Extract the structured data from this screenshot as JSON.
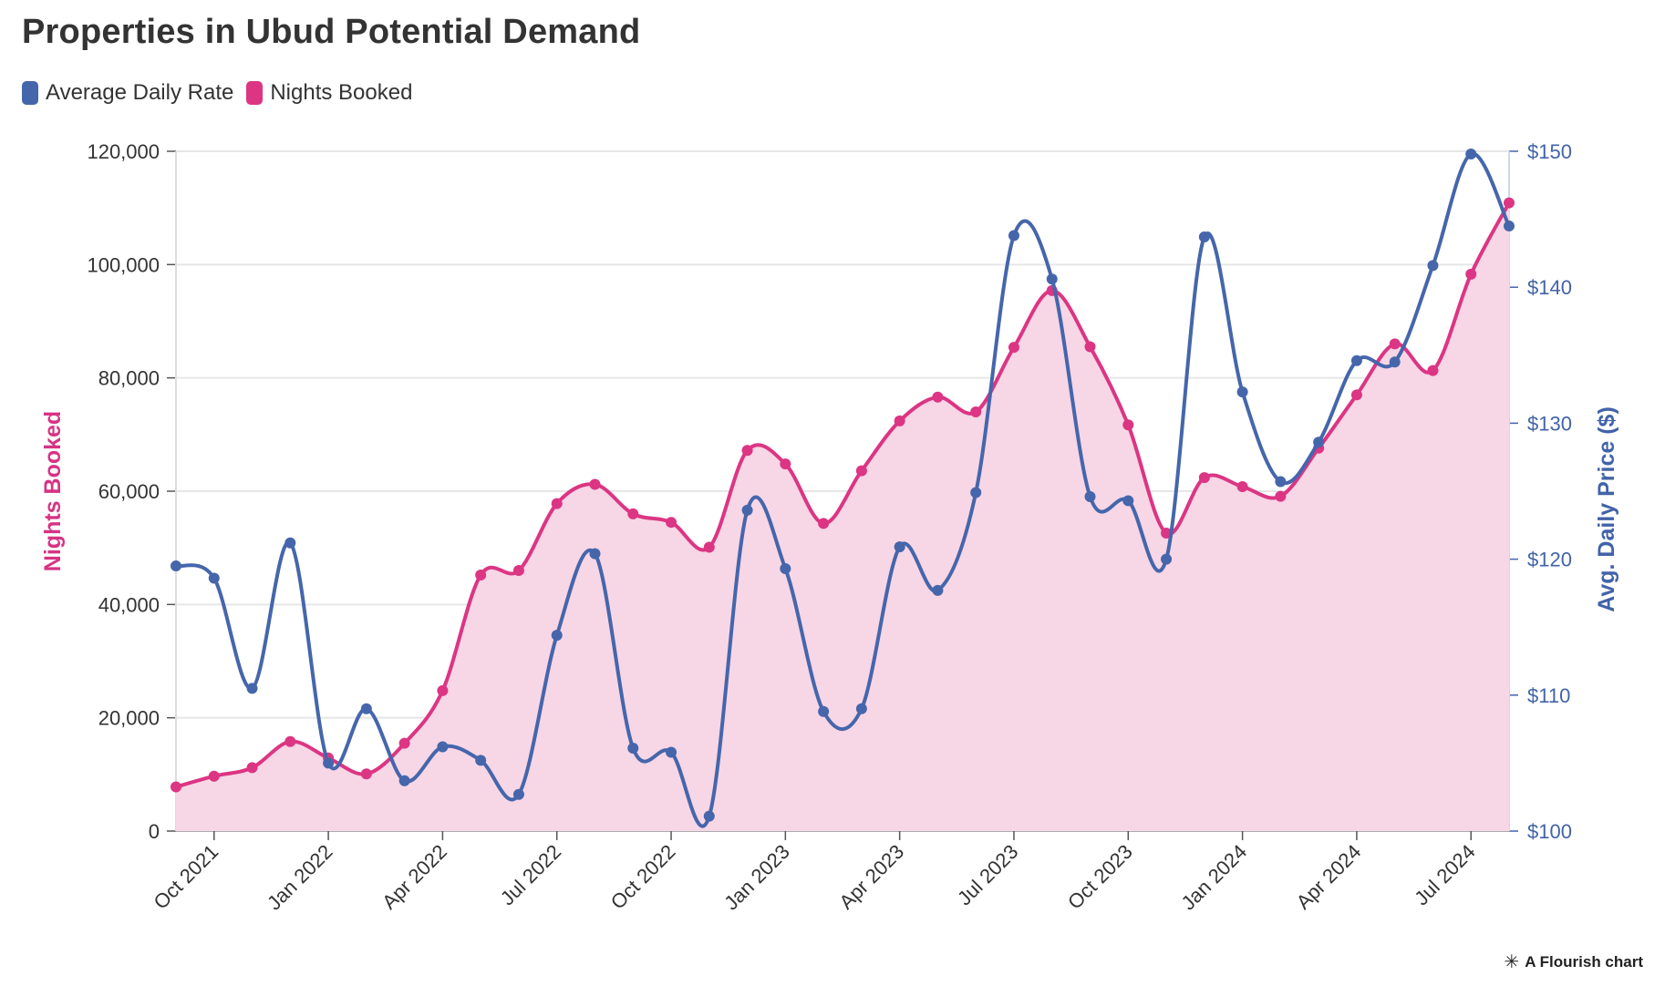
{
  "title": "Properties in Ubud Potential Demand",
  "legend": [
    {
      "name": "Average Daily Rate",
      "color": "#4566ab"
    },
    {
      "name": "Nights Booked",
      "color": "#dc3583"
    }
  ],
  "credit": {
    "text": "A Flourish chart",
    "icon": "flourish-asterisk-icon"
  },
  "chart_data": {
    "type": "line",
    "title": "Properties in Ubud Potential Demand",
    "x_ticks": [
      "Oct 2021",
      "Jan 2022",
      "Apr 2022",
      "Jul 2022",
      "Oct 2022",
      "Jan 2023",
      "Apr 2023",
      "Jul 2023",
      "Oct 2023",
      "Jan 2024",
      "Apr 2024",
      "Jul 2024"
    ],
    "x": [
      "2021-09",
      "2021-10",
      "2021-11",
      "2021-12",
      "2022-01",
      "2022-02",
      "2022-03",
      "2022-04",
      "2022-05",
      "2022-06",
      "2022-07",
      "2022-08",
      "2022-09",
      "2022-10",
      "2022-11",
      "2022-12",
      "2023-01",
      "2023-02",
      "2023-03",
      "2023-04",
      "2023-05",
      "2023-06",
      "2023-07",
      "2023-08",
      "2023-09",
      "2023-10",
      "2023-11",
      "2023-12",
      "2024-01",
      "2024-02",
      "2024-03",
      "2024-04",
      "2024-05",
      "2024-06",
      "2024-07",
      "2024-08"
    ],
    "left_axis": {
      "label": "Nights Booked",
      "ylim": [
        0,
        120000
      ],
      "ticks": [
        "0",
        "20,000",
        "40,000",
        "60,000",
        "80,000",
        "100,000",
        "120,000"
      ]
    },
    "right_axis": {
      "label": "Avg. Daily Price ($)",
      "ylim": [
        100,
        150
      ],
      "ticks": [
        "$100",
        "$110",
        "$120",
        "$130",
        "$140",
        "$150"
      ]
    },
    "grid": true,
    "legend_position": "top-left",
    "series": [
      {
        "name": "Nights Booked",
        "axis": "left",
        "color": "#dc3583",
        "fill": "#f7d6e6",
        "values": [
          7800,
          9700,
          11200,
          15800,
          12900,
          10100,
          15500,
          24800,
          45200,
          46000,
          57800,
          61200,
          56000,
          54500,
          50100,
          67200,
          64800,
          54300,
          63600,
          72400,
          76600,
          74000,
          85400,
          95400,
          85500,
          71700,
          52600,
          62400,
          60800,
          59100,
          67600,
          77000,
          86000,
          81300,
          98300,
          110900
        ]
      },
      {
        "name": "Average Daily Rate",
        "axis": "right",
        "color": "#4566ab",
        "values": [
          119.5,
          118.6,
          110.5,
          121.2,
          105.0,
          109.0,
          103.7,
          106.2,
          105.2,
          102.7,
          114.4,
          120.4,
          106.1,
          105.8,
          101.1,
          123.6,
          119.3,
          108.8,
          109.0,
          120.9,
          117.7,
          124.9,
          143.8,
          140.6,
          124.6,
          124.3,
          120.0,
          143.7,
          132.3,
          125.7,
          128.6,
          134.6,
          134.5,
          141.6,
          149.8,
          144.5
        ]
      }
    ]
  }
}
